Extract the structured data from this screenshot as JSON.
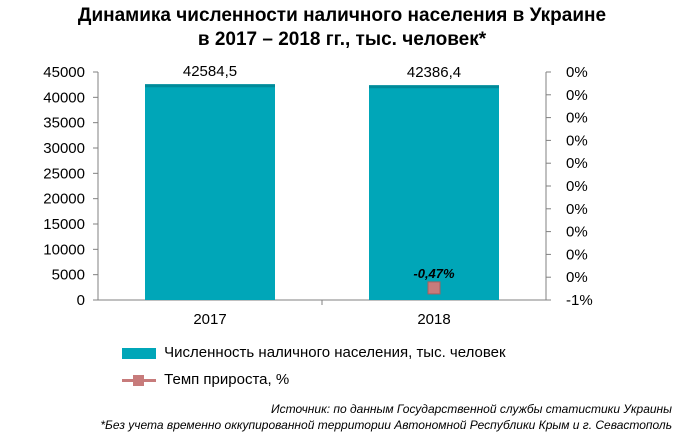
{
  "title_line1": "Динамика численности наличного населения в Украине",
  "title_line2": "в 2017 – 2018 гг., тыс. человек*",
  "chart_data": {
    "type": "bar",
    "categories": [
      "2017",
      "2018"
    ],
    "series": [
      {
        "name": "Численность наличного населения, тыс. человек",
        "type": "bar",
        "axis": "left",
        "values": [
          42584.5,
          42386.4
        ],
        "labels": [
          "42584,5",
          "42386,4"
        ]
      },
      {
        "name": "Темп прироста, %",
        "type": "line",
        "axis": "right",
        "values": [
          null,
          -0.47
        ],
        "labels": [
          "",
          "-0,47%"
        ]
      }
    ],
    "ylim": [
      0,
      45000
    ],
    "y_ticks": [
      "45000",
      "40000",
      "35000",
      "30000",
      "25000",
      "20000",
      "15000",
      "10000",
      "5000",
      "0"
    ],
    "y2_ticks": [
      "0%",
      "0%",
      "0%",
      "0%",
      "0%",
      "0%",
      "0%",
      "0%",
      "0%",
      "0%",
      "-1%"
    ],
    "grid": false,
    "legend_position": "bottom-left"
  },
  "colors": {
    "bar": "#00a6b8",
    "bar_dark": "#008a99",
    "marker": "#c77b7b",
    "axis": "#808080"
  },
  "source_note": "Источник: по данным Государственной службы статистики Украины",
  "footnote": "*Без учета временно оккупированной территории Автономной Республики Крым и г. Севастополь"
}
